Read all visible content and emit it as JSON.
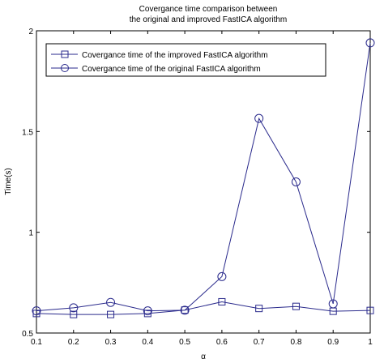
{
  "chart_data": {
    "type": "line",
    "title": "Covergance time comparison between\nthe original and improved FastICA algorithm",
    "title_lines": [
      "Covergance time comparison between",
      "the original and improved FastICA algorithm"
    ],
    "xlabel": "α",
    "ylabel": "Time(s)",
    "x": [
      0.1,
      0.2,
      0.3,
      0.4,
      0.5,
      0.6,
      0.7,
      0.8,
      0.9,
      1.0
    ],
    "xlim": [
      0.1,
      1.0
    ],
    "ylim": [
      0.5,
      2.0
    ],
    "x_ticks": [
      0.1,
      0.2,
      0.3,
      0.4,
      0.5,
      0.6,
      0.7,
      0.8,
      0.9,
      1.0
    ],
    "x_tick_labels": [
      "0.1",
      "0.2",
      "0.3",
      "0.4",
      "0.5",
      "0.6",
      "0.7",
      "0.8",
      "0.9",
      "1"
    ],
    "y_ticks": [
      0.5,
      1.0,
      1.5,
      2.0
    ],
    "y_tick_labels": [
      "0.5",
      "1",
      "1.5",
      "2"
    ],
    "grid": false,
    "legend_position": "top-left",
    "line_color": "#2a2a8c",
    "series": [
      {
        "name": "Covergance time of the improved FastICA algorithm",
        "marker": "square",
        "values": [
          0.597,
          0.592,
          0.592,
          0.597,
          0.614,
          0.655,
          0.622,
          0.632,
          0.608,
          0.612
        ]
      },
      {
        "name": "Covergance time of the original FastICA algorithm",
        "marker": "circle",
        "values": [
          0.61,
          0.625,
          0.652,
          0.61,
          0.613,
          0.78,
          1.565,
          1.25,
          0.645,
          1.94
        ]
      }
    ]
  }
}
